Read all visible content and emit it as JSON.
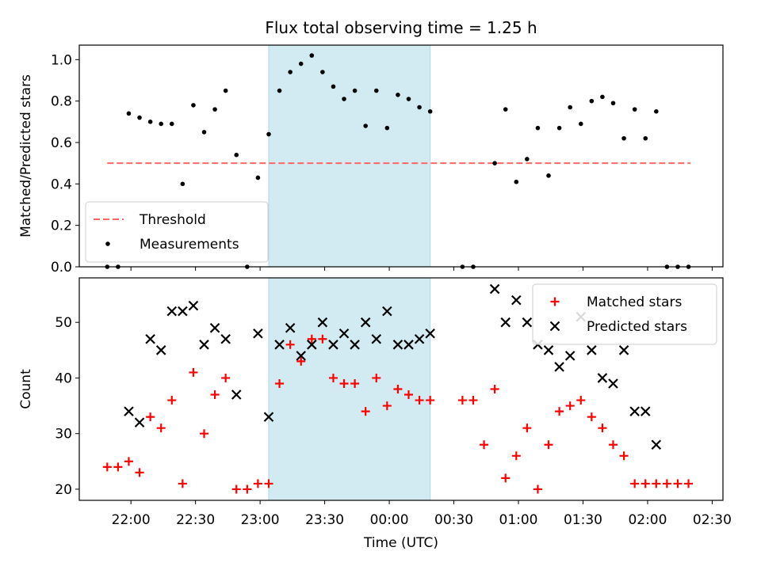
{
  "title": "Flux total observing time = 1.25 h",
  "xlabel": "Time (UTC)",
  "x_ticks": [
    "22:00",
    "22:30",
    "23:00",
    "23:30",
    "00:00",
    "00:30",
    "01:00",
    "01:30",
    "02:00",
    "02:30"
  ],
  "colors": {
    "shade": "#add8e6",
    "threshold": "#ff6666",
    "measurements": "#000000",
    "matched": "#ff0000",
    "predicted": "#000000"
  },
  "chart_data": [
    {
      "type": "scatter",
      "ylabel": "Matched/Predicted stars",
      "ylim": [
        0,
        1.07
      ],
      "y_ticks": [
        "0.0",
        "0.2",
        "0.4",
        "0.6",
        "0.8",
        "1.0"
      ],
      "x_unit": "minutes after 22:00 UTC",
      "xlim": [
        -24,
        275
      ],
      "shaded_x_range": [
        64,
        139
      ],
      "legend": {
        "placement": "lower-left",
        "entries": [
          "Threshold",
          "Measurements"
        ]
      },
      "series": [
        {
          "name": "Threshold",
          "kind": "dashed-line",
          "x": [
            -11,
            260
          ],
          "y": [
            0.5,
            0.5
          ]
        },
        {
          "name": "Measurements",
          "kind": "dots",
          "x": [
            -11,
            -6,
            -1,
            4,
            9,
            14,
            19,
            24,
            29,
            34,
            39,
            44,
            49,
            54,
            59,
            64,
            69,
            74,
            79,
            84,
            89,
            94,
            99,
            104,
            109,
            114,
            119,
            124,
            129,
            134,
            139,
            154,
            159,
            169,
            174,
            179,
            184,
            189,
            194,
            199,
            204,
            209,
            214,
            219,
            224,
            229,
            234,
            239,
            244,
            249,
            254,
            259
          ],
          "y": [
            0.0,
            0.0,
            0.74,
            0.72,
            0.7,
            0.69,
            0.69,
            0.4,
            0.78,
            0.65,
            0.76,
            0.85,
            0.54,
            0.0,
            0.43,
            0.64,
            0.85,
            0.94,
            0.98,
            1.02,
            0.94,
            0.87,
            0.81,
            0.85,
            0.68,
            0.85,
            0.67,
            0.83,
            0.81,
            0.77,
            0.75,
            0.0,
            0.0,
            0.5,
            0.76,
            0.41,
            0.52,
            0.67,
            0.44,
            0.67,
            0.77,
            0.69,
            0.8,
            0.82,
            0.79,
            0.62,
            0.76,
            0.62,
            0.75,
            0.0,
            0.0,
            0.0
          ]
        }
      ]
    },
    {
      "type": "scatter",
      "ylabel": "Count",
      "ylim": [
        18,
        58
      ],
      "y_ticks": [
        "20",
        "30",
        "40",
        "50"
      ],
      "x_unit": "minutes after 22:00 UTC",
      "xlim": [
        -24,
        275
      ],
      "shaded_x_range": [
        64,
        139
      ],
      "legend": {
        "placement": "top-right",
        "entries": [
          "Matched stars",
          "Predicted stars"
        ]
      },
      "series": [
        {
          "name": "Matched stars",
          "marker": "+",
          "x": [
            -11,
            -6,
            -1,
            4,
            9,
            14,
            19,
            24,
            29,
            34,
            39,
            44,
            49,
            54,
            59,
            64,
            69,
            74,
            79,
            84,
            89,
            94,
            99,
            104,
            109,
            114,
            119,
            124,
            129,
            134,
            139,
            154,
            159,
            164,
            169,
            174,
            179,
            184,
            189,
            194,
            199,
            204,
            209,
            214,
            219,
            224,
            229,
            234,
            239,
            244,
            249,
            254,
            259
          ],
          "y": [
            24,
            24,
            25,
            23,
            33,
            31,
            36,
            21,
            41,
            30,
            37,
            40,
            20,
            20,
            21,
            21,
            39,
            46,
            43,
            47,
            47,
            40,
            39,
            39,
            34,
            40,
            35,
            38,
            37,
            36,
            36,
            36,
            36,
            28,
            38,
            22,
            26,
            31,
            20,
            28,
            34,
            35,
            36,
            33,
            31,
            28,
            26,
            21,
            21,
            21,
            21,
            21,
            21
          ]
        },
        {
          "name": "Predicted stars",
          "marker": "x",
          "x": [
            -1,
            4,
            9,
            14,
            19,
            24,
            29,
            34,
            39,
            44,
            49,
            59,
            64,
            69,
            74,
            79,
            84,
            89,
            94,
            99,
            104,
            109,
            114,
            119,
            124,
            129,
            134,
            139,
            169,
            174,
            179,
            184,
            189,
            194,
            199,
            204,
            209,
            214,
            219,
            224,
            229,
            234,
            239,
            244
          ],
          "y": [
            34,
            32,
            47,
            45,
            52,
            52,
            53,
            46,
            49,
            47,
            37,
            48,
            33,
            46,
            49,
            44,
            46,
            50,
            46,
            48,
            46,
            50,
            47,
            52,
            46,
            46,
            47,
            48,
            56,
            50,
            54,
            50,
            46,
            45,
            42,
            44,
            51,
            45,
            40,
            39,
            45,
            34,
            34,
            28
          ]
        }
      ]
    }
  ]
}
